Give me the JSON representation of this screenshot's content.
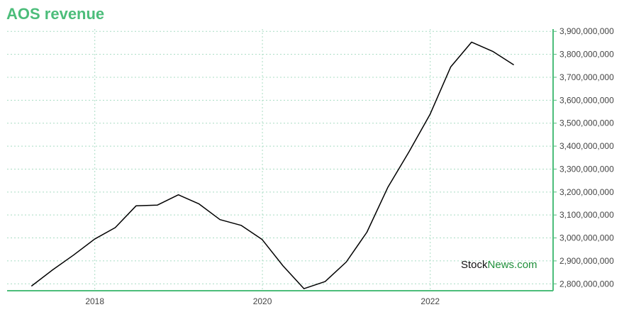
{
  "chart_data": {
    "type": "line",
    "title": "AOS revenue",
    "xlabel": "",
    "ylabel": "",
    "x_tick_labels": [
      "2018",
      "2020",
      "2022"
    ],
    "y_tick_labels": [
      "2,800,000,000",
      "2,900,000,000",
      "3,000,000,000",
      "3,100,000,000",
      "3,200,000,000",
      "3,300,000,000",
      "3,400,000,000",
      "3,500,000,000",
      "3,600,000,000",
      "3,700,000,000",
      "3,800,000,000",
      "3,900,000,000"
    ],
    "ylim": [
      2770000000,
      3910000000
    ],
    "xlim": [
      "2016-12-15",
      "2023-06-20"
    ],
    "grid": true,
    "series": [
      {
        "color": "#000000",
        "points": [
          {
            "x": "2017-03-31",
            "y": 2790000000
          },
          {
            "x": "2017-06-30",
            "y": 2860000000
          },
          {
            "x": "2017-09-30",
            "y": 2925000000
          },
          {
            "x": "2017-12-31",
            "y": 2995000000
          },
          {
            "x": "2018-03-31",
            "y": 3045000000
          },
          {
            "x": "2018-06-30",
            "y": 3140000000
          },
          {
            "x": "2018-09-30",
            "y": 3143000000
          },
          {
            "x": "2018-12-31",
            "y": 3188000000
          },
          {
            "x": "2019-03-31",
            "y": 3148000000
          },
          {
            "x": "2019-06-30",
            "y": 3080000000
          },
          {
            "x": "2019-09-30",
            "y": 3055000000
          },
          {
            "x": "2019-12-31",
            "y": 2993000000
          },
          {
            "x": "2020-03-31",
            "y": 2878000000
          },
          {
            "x": "2020-06-30",
            "y": 2779000000
          },
          {
            "x": "2020-09-30",
            "y": 2810000000
          },
          {
            "x": "2020-12-31",
            "y": 2895000000
          },
          {
            "x": "2021-03-31",
            "y": 3025000000
          },
          {
            "x": "2021-06-30",
            "y": 3220000000
          },
          {
            "x": "2021-09-30",
            "y": 3375000000
          },
          {
            "x": "2021-12-31",
            "y": 3538000000
          },
          {
            "x": "2022-03-31",
            "y": 3745000000
          },
          {
            "x": "2022-06-30",
            "y": 3853000000
          },
          {
            "x": "2022-09-30",
            "y": 3813000000
          },
          {
            "x": "2022-12-31",
            "y": 3754000000
          }
        ]
      }
    ]
  },
  "watermark": {
    "part1": "Stock",
    "part2": "News.com"
  },
  "colors": {
    "accent": "#4cbd7a",
    "grid": "#a8dcc3",
    "line": "#000000"
  }
}
